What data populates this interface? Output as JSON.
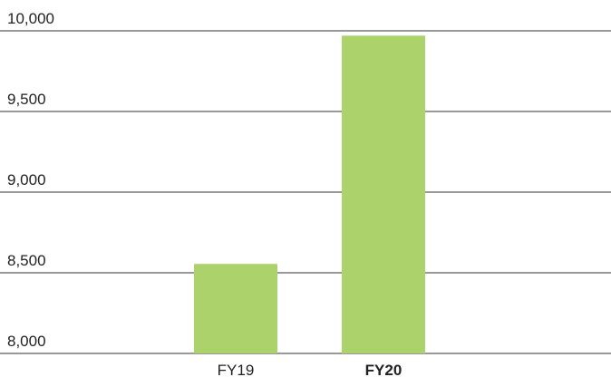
{
  "chart_data": {
    "type": "bar",
    "categories": [
      "FY19",
      "FY20"
    ],
    "values": [
      8555,
      9970
    ],
    "color": "#acd36b",
    "ylim": [
      8000,
      10000
    ],
    "yticks": [
      {
        "value": 8000,
        "label": "8,000"
      },
      {
        "value": 8500,
        "label": "8,500"
      },
      {
        "value": 9000,
        "label": "9,000"
      },
      {
        "value": 9500,
        "label": "9,500"
      },
      {
        "value": 10000,
        "label": "10,000"
      }
    ],
    "grid": true
  }
}
